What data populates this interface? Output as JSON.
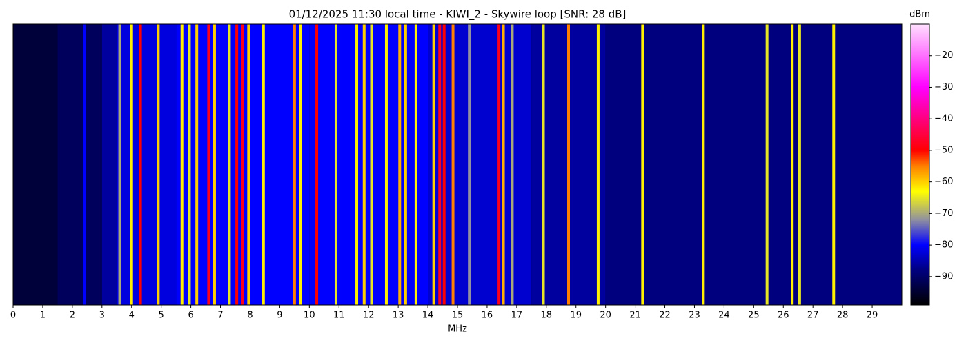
{
  "chart_data": {
    "type": "waterfall",
    "title": "01/12/2025 11:30 local time - KIWI_2 - Skywire loop [SNR: 28 dB]",
    "xlabel": "MHz",
    "colorbar_label": "dBm",
    "xlim": [
      0,
      30
    ],
    "xticks": [
      0,
      1,
      2,
      3,
      4,
      5,
      6,
      7,
      8,
      9,
      10,
      11,
      12,
      13,
      14,
      15,
      16,
      17,
      18,
      19,
      20,
      21,
      22,
      23,
      24,
      25,
      26,
      27,
      28,
      29
    ],
    "clim": [
      -99,
      -10
    ],
    "cticks": [
      {
        "value": -20,
        "label": "−20"
      },
      {
        "value": -30,
        "label": "−30"
      },
      {
        "value": -40,
        "label": "−40"
      },
      {
        "value": -50,
        "label": "−50"
      },
      {
        "value": -60,
        "label": "−60"
      },
      {
        "value": -70,
        "label": "−70"
      },
      {
        "value": -80,
        "label": "−80"
      },
      {
        "value": -90,
        "label": "−90"
      }
    ],
    "colormap": [
      {
        "value": -99,
        "color": "#000000"
      },
      {
        "value": -88,
        "color": "#00007f"
      },
      {
        "value": -80,
        "color": "#0000ff"
      },
      {
        "value": -72,
        "color": "#9090a0"
      },
      {
        "value": -63,
        "color": "#ffff00"
      },
      {
        "value": -55,
        "color": "#ff8000"
      },
      {
        "value": -50,
        "color": "#ff0000"
      },
      {
        "value": -30,
        "color": "#ff00ff"
      },
      {
        "value": -10,
        "color": "#ffe0ff"
      }
    ],
    "noise": {
      "bins": [
        0,
        1.5,
        3,
        3.5,
        5.5,
        10,
        14,
        17.5,
        20,
        30
      ],
      "values": [
        -94,
        -91,
        -86,
        -82,
        -80,
        -80,
        -83,
        -86,
        -88
      ]
    },
    "x": [
      2.4,
      3.6,
      4.0,
      4.3,
      4.9,
      5.7,
      5.95,
      6.2,
      6.6,
      6.8,
      7.3,
      7.55,
      7.75,
      7.95,
      8.45,
      9.5,
      9.7,
      10.25,
      10.9,
      11.6,
      11.85,
      12.1,
      12.6,
      13.05,
      13.25,
      13.6,
      14.2,
      14.4,
      14.55,
      14.85,
      15.4,
      16.4,
      16.55,
      16.85,
      17.9,
      18.75,
      19.75,
      21.25,
      23.3,
      25.45,
      26.3,
      26.55,
      27.7
    ],
    "values": [
      -80,
      -70,
      -62,
      -50,
      -60,
      -62,
      -65,
      -60,
      -48,
      -60,
      -65,
      -50,
      -48,
      -60,
      -62,
      -55,
      -62,
      -50,
      -65,
      -62,
      -60,
      -65,
      -62,
      -58,
      -60,
      -62,
      -60,
      -48,
      -50,
      -55,
      -72,
      -48,
      -58,
      -70,
      -65,
      -55,
      -62,
      -62,
      -62,
      -65,
      -62,
      -65,
      -62
    ]
  }
}
